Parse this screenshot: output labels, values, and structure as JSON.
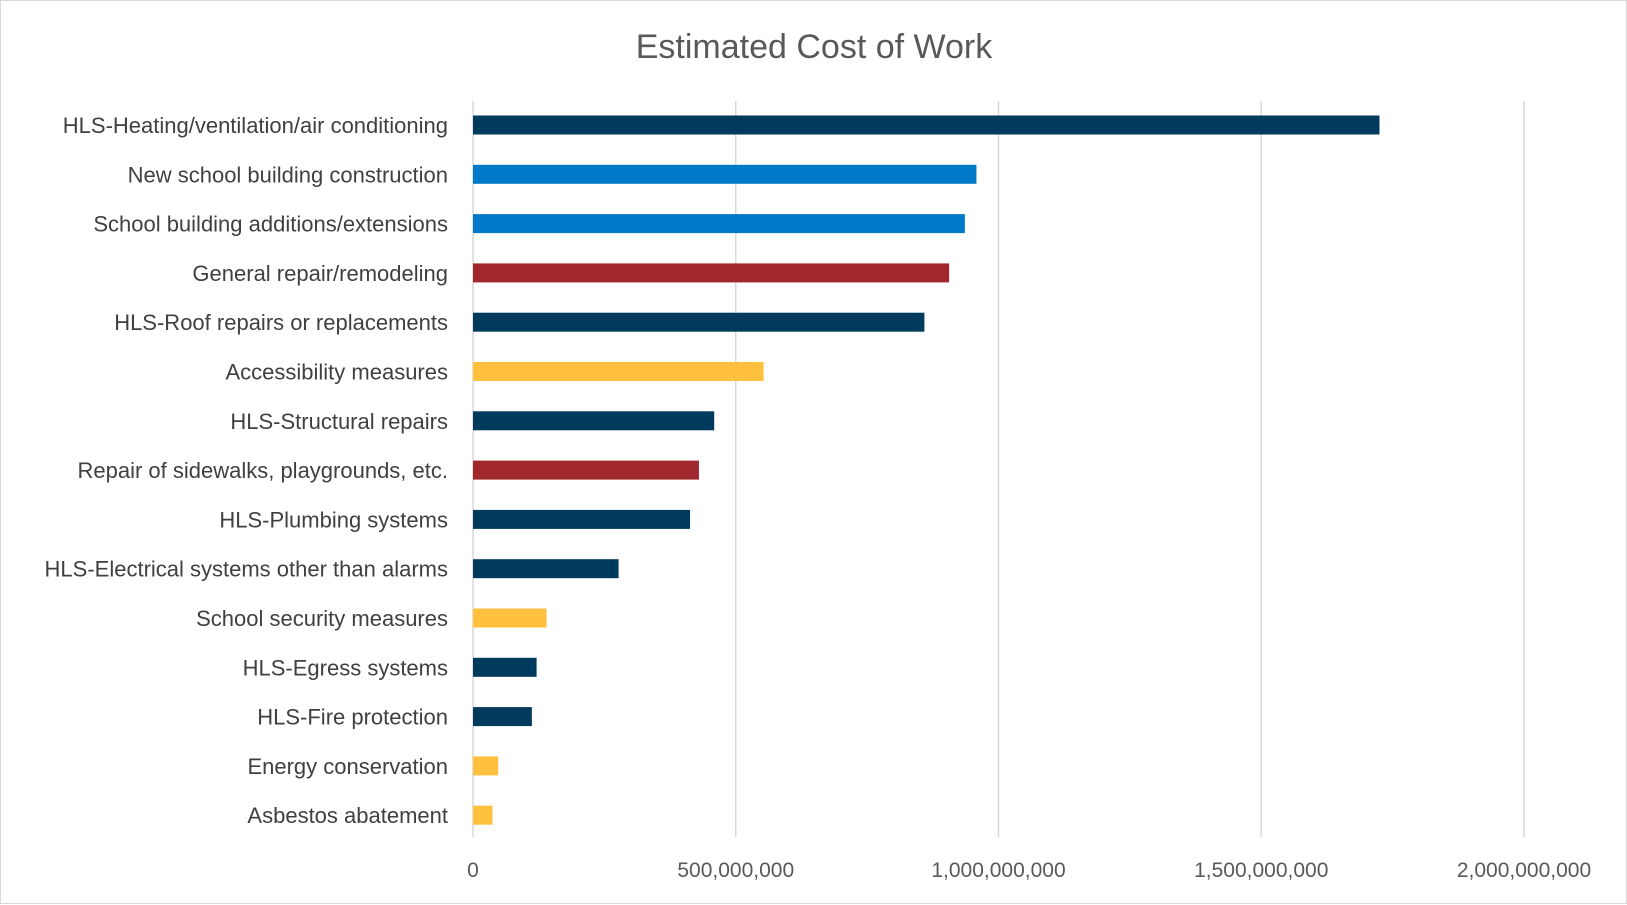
{
  "chart_data": {
    "type": "bar",
    "orientation": "horizontal",
    "title": "Estimated Cost of Work",
    "xlabel": "",
    "ylabel": "",
    "xlim": [
      0,
      2000000000
    ],
    "x_ticks": [
      0,
      500000000,
      1000000000,
      1500000000,
      2000000000
    ],
    "x_tick_labels": [
      "0",
      "500,000,000",
      "1,000,000,000",
      "1,500,000,000",
      "2,000,000,000"
    ],
    "grid": "vertical",
    "legend": "none",
    "categories": [
      "HLS-Heating/ventilation/air conditioning",
      "New school building construction",
      "School building additions/extensions",
      "General repair/remodeling",
      "HLS-Roof repairs or replacements",
      "Accessibility measures",
      "HLS-Structural repairs",
      "Repair of sidewalks, playgrounds, etc.",
      "HLS-Plumbing systems",
      "HLS-Electrical systems other than alarms",
      "School security measures",
      "HLS-Egress systems",
      "HLS-Fire protection",
      "Energy conservation",
      "Asbestos abatement"
    ],
    "values": [
      1725000000,
      958000000,
      936000000,
      906000000,
      859000000,
      553000000,
      459000000,
      430000000,
      413000000,
      277000000,
      140000000,
      121000000,
      112000000,
      48000000,
      37000000
    ],
    "bar_colors": [
      "#003a5d",
      "#0079c8",
      "#0079c8",
      "#a0282d",
      "#003a5d",
      "#ffc03e",
      "#003a5d",
      "#a0282d",
      "#003a5d",
      "#003a5d",
      "#ffc03e",
      "#003a5d",
      "#003a5d",
      "#ffc03e",
      "#ffc03e"
    ],
    "gridline_color": "#d9d9d9"
  }
}
